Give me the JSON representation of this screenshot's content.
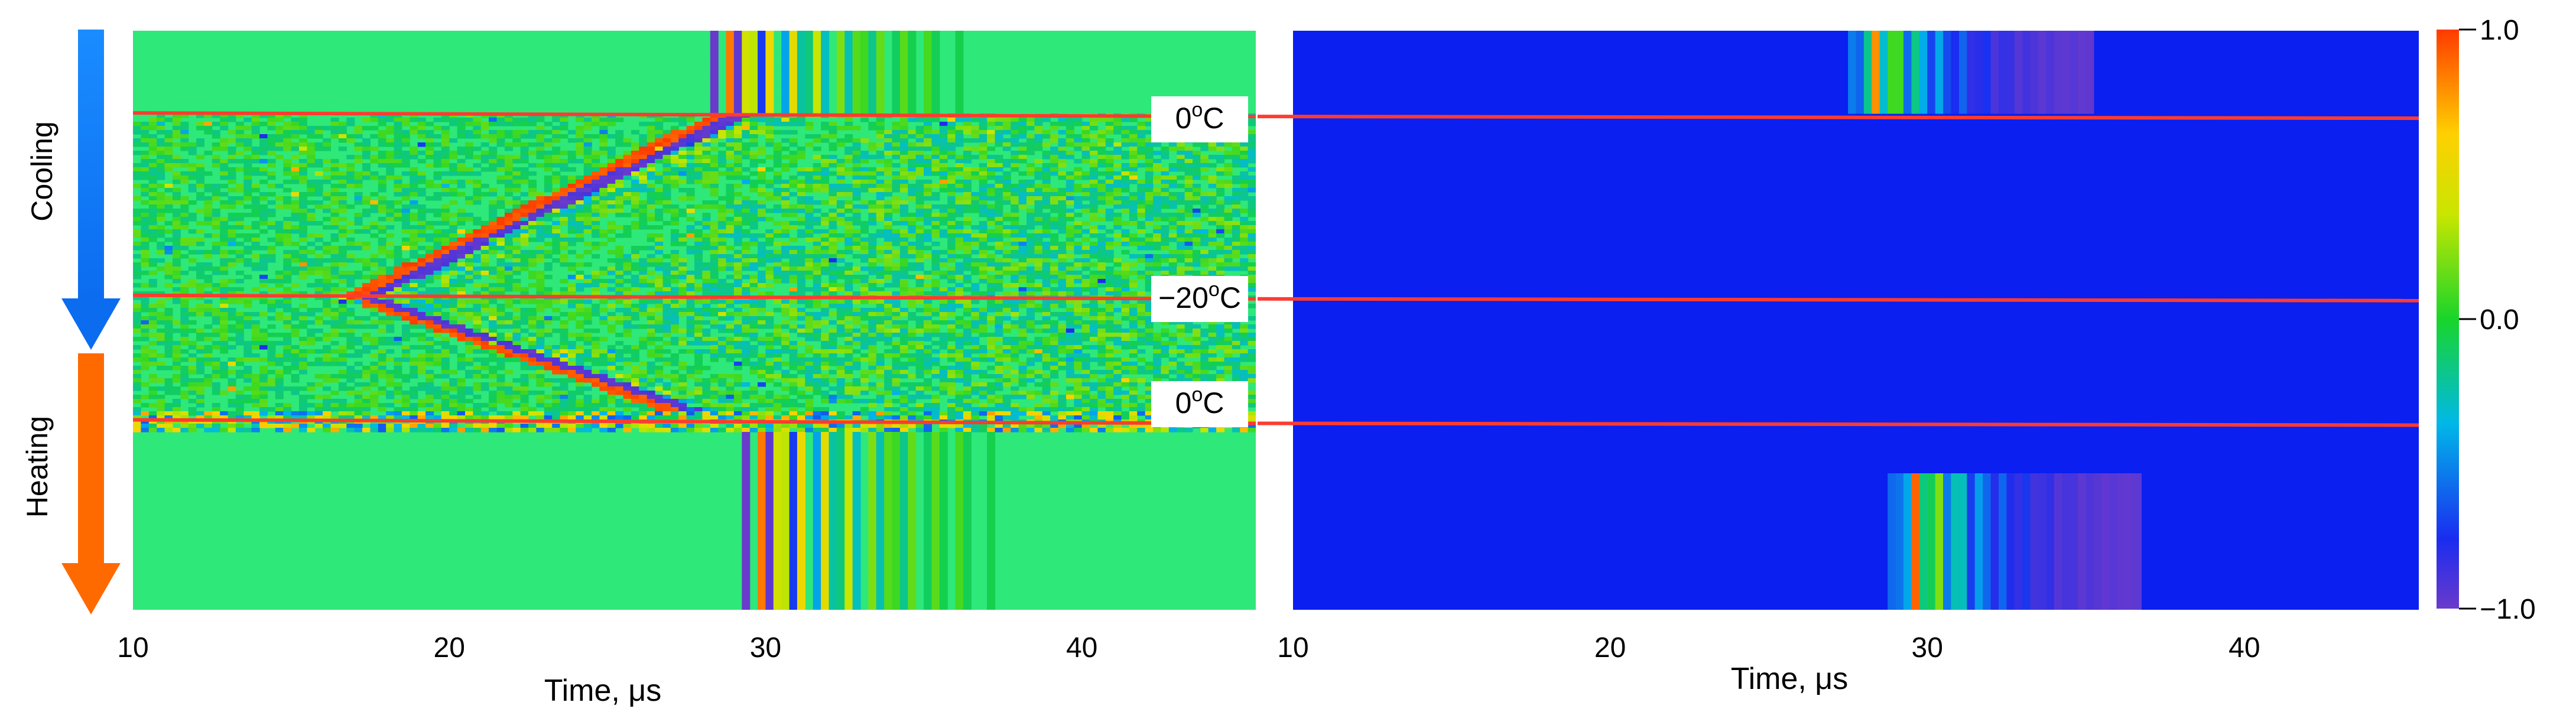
{
  "chart_data": [
    {
      "type": "heatmap",
      "panel": "left",
      "title": "",
      "xlabel": "Time, μs",
      "ylabel": "",
      "xlim": [
        10,
        45.5
      ],
      "x_ticks": [
        "10",
        "20",
        "30",
        "40"
      ],
      "x_tick_values": [
        10,
        20,
        30,
        40
      ],
      "side_labels": [
        {
          "text": "Cooling",
          "arrow_color": "#1a73e8"
        },
        {
          "text": "Heating",
          "arrow_color": "#ff6a00"
        }
      ],
      "temperature_markers": [
        {
          "label": "0",
          "unit": "C",
          "fraction": 0.145
        },
        {
          "label": "−20",
          "unit": "C",
          "fraction": 0.46
        },
        {
          "label": "0",
          "unit": "C",
          "fraction": 0.675
        }
      ],
      "features": {
        "top_signal_time": 28.5,
        "bottom_signal_time": 29.5,
        "min_arrival_time": 16.8,
        "background": "near 0 (green)"
      }
    },
    {
      "type": "heatmap",
      "panel": "right",
      "title": "",
      "xlabel": "Time, μs",
      "ylabel": "",
      "xlim": [
        10,
        45.5
      ],
      "x_ticks": [
        "10",
        "20",
        "30",
        "40"
      ],
      "x_tick_values": [
        10,
        20,
        30,
        40
      ],
      "temperature_markers": [
        {
          "fraction": 0.145
        },
        {
          "fraction": 0.46
        },
        {
          "fraction": 0.675
        }
      ],
      "features": {
        "top_signal_time": 28.2,
        "bottom_signal_time": 29.5,
        "background": "near −1 (blue)"
      }
    }
  ],
  "colorbar": {
    "min": -1.0,
    "max": 1.0,
    "ticks": [
      "1.0",
      "0.0",
      "−1.0"
    ],
    "tick_values": [
      1.0,
      0.0,
      -1.0
    ],
    "colors": [
      "#ff3a00",
      "#ffd000",
      "#2ed32a",
      "#00c8e0",
      "#1a2cf0",
      "#6a3acc"
    ]
  },
  "colors": {
    "marker_line": "#ff3b30",
    "left_background": "#2ee87a",
    "right_background": "#0a1ff0"
  }
}
